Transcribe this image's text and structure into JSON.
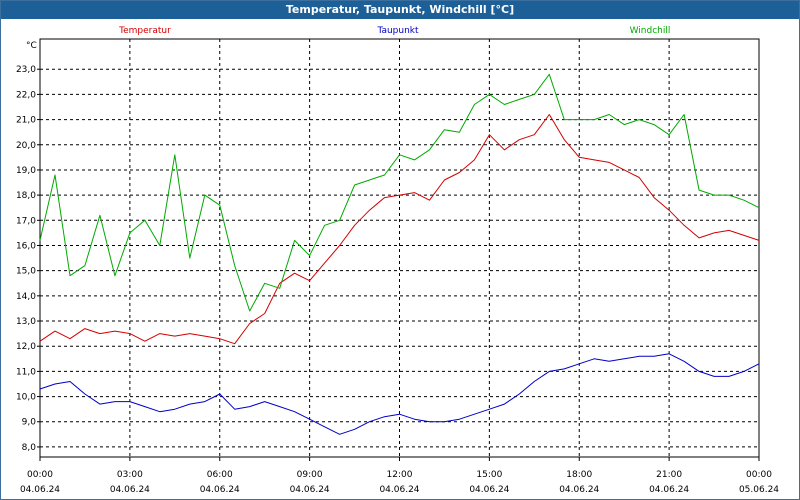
{
  "chart_data": {
    "type": "line",
    "title": "Temperatur, Taupunkt, Windchill [°C]",
    "ylabel": "°C",
    "xlabel": "",
    "ylim": [
      7.6,
      24.2
    ],
    "xlim": [
      0,
      24
    ],
    "grid": true,
    "legend_position": "top",
    "y_ticks": [
      "23,0",
      "22,0",
      "21,0",
      "20,0",
      "19,0",
      "18,0",
      "17,0",
      "16,0",
      "15,0",
      "14,0",
      "13,0",
      "12,0",
      "11,0",
      "10,0",
      "9,0",
      "8,0"
    ],
    "x_ticks": [
      {
        "time": "00:00",
        "date": "04.06.24"
      },
      {
        "time": "03:00",
        "date": "04.06.24"
      },
      {
        "time": "06:00",
        "date": "04.06.24"
      },
      {
        "time": "09:00",
        "date": "04.06.24"
      },
      {
        "time": "12:00",
        "date": "04.06.24"
      },
      {
        "time": "15:00",
        "date": "04.06.24"
      },
      {
        "time": "18:00",
        "date": "04.06.24"
      },
      {
        "time": "21:00",
        "date": "04.06.24"
      },
      {
        "time": "00:00",
        "date": "05.06.24"
      }
    ],
    "x": [
      0,
      0.5,
      1,
      1.5,
      2,
      2.5,
      3,
      3.5,
      4,
      4.5,
      5,
      5.5,
      6,
      6.5,
      7,
      7.5,
      8,
      8.5,
      9,
      9.5,
      10,
      10.5,
      11,
      11.5,
      12,
      12.5,
      13,
      13.5,
      14,
      14.5,
      15,
      15.5,
      16,
      16.5,
      17,
      17.5,
      18,
      18.5,
      19,
      19.5,
      20,
      20.5,
      21,
      21.5,
      22,
      22.5,
      23,
      23.5,
      24
    ],
    "series": [
      {
        "name": "Temperatur",
        "color": "#d40000",
        "values": [
          12.2,
          12.6,
          12.3,
          12.7,
          12.5,
          12.6,
          12.5,
          12.2,
          12.5,
          12.4,
          12.5,
          12.4,
          12.3,
          12.1,
          12.9,
          13.3,
          14.5,
          14.9,
          14.6,
          15.3,
          16.0,
          16.8,
          17.4,
          17.9,
          18.0,
          18.1,
          17.8,
          18.6,
          18.9,
          19.4,
          20.4,
          19.8,
          20.2,
          20.4,
          21.2,
          20.2,
          19.5,
          19.4,
          19.3,
          19.0,
          18.7,
          17.9,
          17.4,
          16.8,
          16.3,
          16.5,
          16.6,
          16.4,
          16.2
        ]
      },
      {
        "name": "Taupunkt",
        "color": "#0000c8",
        "values": [
          10.3,
          10.5,
          10.6,
          10.1,
          9.7,
          9.8,
          9.8,
          9.6,
          9.4,
          9.5,
          9.7,
          9.8,
          10.1,
          9.5,
          9.6,
          9.8,
          9.6,
          9.4,
          9.1,
          8.8,
          8.5,
          8.7,
          9.0,
          9.2,
          9.3,
          9.1,
          9.0,
          9.0,
          9.1,
          9.3,
          9.5,
          9.7,
          10.1,
          10.6,
          11.0,
          11.1,
          11.3,
          11.5,
          11.4,
          11.5,
          11.6,
          11.6,
          11.7,
          11.4,
          11.0,
          10.8,
          10.8,
          11.0,
          11.3
        ]
      },
      {
        "name": "Windchill",
        "color": "#00aa00",
        "values": [
          16.2,
          18.8,
          14.8,
          15.2,
          17.2,
          14.8,
          16.5,
          17.0,
          16.0,
          19.6,
          15.5,
          18.0,
          17.6,
          15.2,
          13.4,
          14.5,
          14.3,
          16.2,
          15.6,
          16.8,
          17.0,
          18.4,
          18.6,
          18.8,
          19.6,
          19.4,
          19.8,
          20.6,
          20.5,
          21.6,
          22.0,
          21.6,
          21.8,
          22.0,
          22.8,
          21.0,
          21.0,
          21.0,
          21.2,
          20.8,
          21.0,
          20.8,
          20.4,
          21.2,
          18.2,
          18.0,
          18.0,
          17.8,
          17.5
        ]
      }
    ]
  }
}
